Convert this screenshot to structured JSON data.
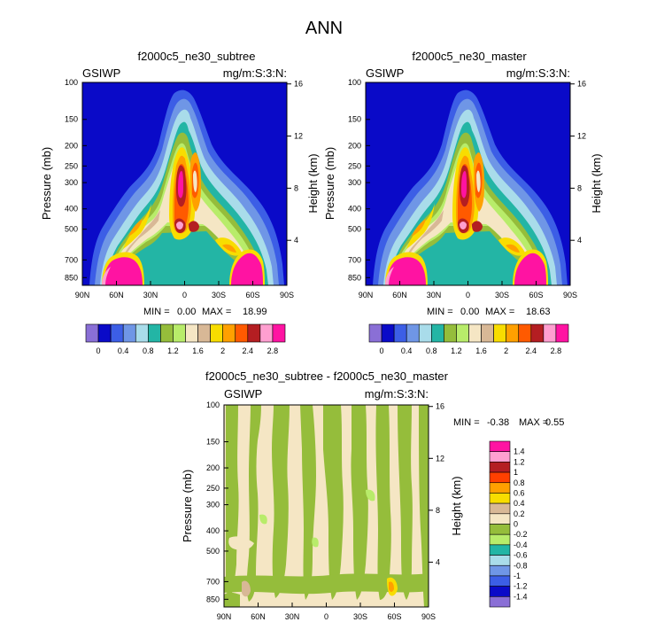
{
  "main_title": "ANN",
  "chart_data": [
    {
      "type": "contour",
      "title": "f2000c5_ne30_subtree",
      "left_label": "GSIWP",
      "right_label": "mg/m:S:3:N:",
      "ylabel": "Pressure (mb)",
      "ylabel_right": "Height (km)",
      "x_ticks": [
        "90N",
        "60N",
        "30N",
        "0",
        "30S",
        "60S",
        "90S"
      ],
      "y_ticks": [
        "100",
        "150",
        "200",
        "250",
        "300",
        "400",
        "500",
        "700",
        "850"
      ],
      "y_right_ticks": [
        "16",
        "12",
        "8",
        "4"
      ],
      "min_label": "MIN =",
      "min_value": "0.00",
      "max_label": "MAX =",
      "max_value": "18.99",
      "colorbar_labels": [
        "0",
        "0.4",
        "0.8",
        "1.2",
        "1.6",
        "2",
        "2.4",
        "2.8"
      ]
    },
    {
      "type": "contour",
      "title": "f2000c5_ne30_master",
      "left_label": "GSIWP",
      "right_label": "mg/m:S:3:N:",
      "ylabel": "Pressure (mb)",
      "ylabel_right": "Height (km)",
      "x_ticks": [
        "90N",
        "60N",
        "30N",
        "0",
        "30S",
        "60S",
        "90S"
      ],
      "y_ticks": [
        "100",
        "150",
        "200",
        "250",
        "300",
        "400",
        "500",
        "700",
        "850"
      ],
      "y_right_ticks": [
        "16",
        "12",
        "8",
        "4"
      ],
      "min_label": "MIN =",
      "min_value": "0.00",
      "max_label": "MAX =",
      "max_value": "18.63",
      "colorbar_labels": [
        "0",
        "0.4",
        "0.8",
        "1.2",
        "1.6",
        "2",
        "2.4",
        "2.8"
      ]
    },
    {
      "type": "contour",
      "title": "f2000c5_ne30_subtree - f2000c5_ne30_master",
      "left_label": "GSIWP",
      "right_label": "mg/m:S:3:N:",
      "ylabel": "Pressure (mb)",
      "ylabel_right": "Height (km)",
      "x_ticks": [
        "90N",
        "60N",
        "30N",
        "0",
        "30S",
        "60S",
        "90S"
      ],
      "y_ticks": [
        "100",
        "150",
        "200",
        "250",
        "300",
        "400",
        "500",
        "700",
        "850"
      ],
      "y_right_ticks": [
        "16",
        "12",
        "8",
        "4"
      ],
      "min_label": "MIN =",
      "min_value": "-0.38",
      "max_label": "MAX =",
      "max_value": "0.55",
      "colorbar_labels": [
        "1.4",
        "1.2",
        "1",
        "0.8",
        "0.6",
        "0.4",
        "0.2",
        "0",
        "-0.2",
        "-0.4",
        "-0.6",
        "-0.8",
        "-1",
        "-1.2",
        "-1.4"
      ]
    }
  ],
  "colors": {
    "abs_scale": [
      "#8a6fd6",
      "#0a0ac8",
      "#3c5ee6",
      "#6f96e6",
      "#a9dcea",
      "#23b5a5",
      "#95bd3b",
      "#b8ec6a",
      "#f5e6c4",
      "#d8b896",
      "#f8dd00",
      "#ffa000",
      "#ff5a00",
      "#b41e22",
      "#ff9fd0",
      "#ff13a2"
    ],
    "diff_scale": [
      "#ff13a2",
      "#ff9fd0",
      "#b41e22",
      "#ff4000",
      "#ffa000",
      "#f8dd00",
      "#d8b896",
      "#f5e6c4",
      "#95bd3b",
      "#b8ec6a",
      "#23b5a5",
      "#a9dcea",
      "#6f96e6",
      "#3c5ee6",
      "#0a0ac8",
      "#8a6fd6"
    ]
  }
}
